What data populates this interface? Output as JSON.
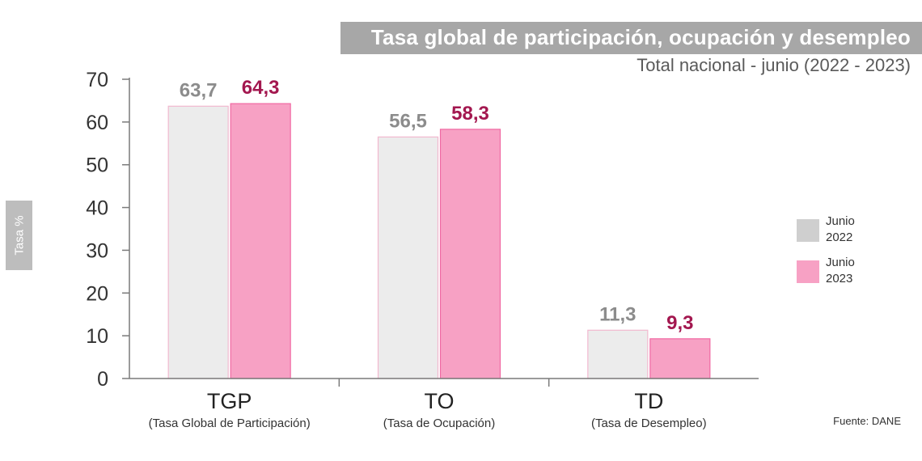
{
  "chart_data": {
    "type": "bar",
    "title": "Tasa global de participación, ocupación y desempleo",
    "subtitle": "Total nacional - junio (2022 - 2023)",
    "ylabel": "Tasa %",
    "xlabel": "",
    "ylim": [
      0,
      70
    ],
    "yticks": [
      0,
      10,
      20,
      30,
      40,
      50,
      60,
      70
    ],
    "grid": false,
    "legend_position": "right",
    "categories": [
      "TGP",
      "TO",
      "TD"
    ],
    "category_descriptions": [
      "(Tasa Global de Participación)",
      "(Tasa de Ocupación)",
      "(Tasa de Desempleo)"
    ],
    "series": [
      {
        "name": "Junio 2022",
        "values": [
          63.7,
          56.5,
          11.3
        ],
        "labels": [
          "63,7",
          "56,5",
          "11,3"
        ],
        "color": "#ececec",
        "label_color": "#8c8c8c"
      },
      {
        "name": "Junio 2023",
        "values": [
          64.3,
          58.3,
          9.3
        ],
        "labels": [
          "64,3",
          "58,3",
          "9,3"
        ],
        "color": "#f7a1c4",
        "label_color": "#a3174f"
      }
    ],
    "legend": [
      {
        "line1": "Junio",
        "line2": "2022",
        "color": "#cfcfcf"
      },
      {
        "line1": "Junio",
        "line2": "2023",
        "color": "#f7a1c4"
      }
    ],
    "source": "Fuente: DANE"
  }
}
